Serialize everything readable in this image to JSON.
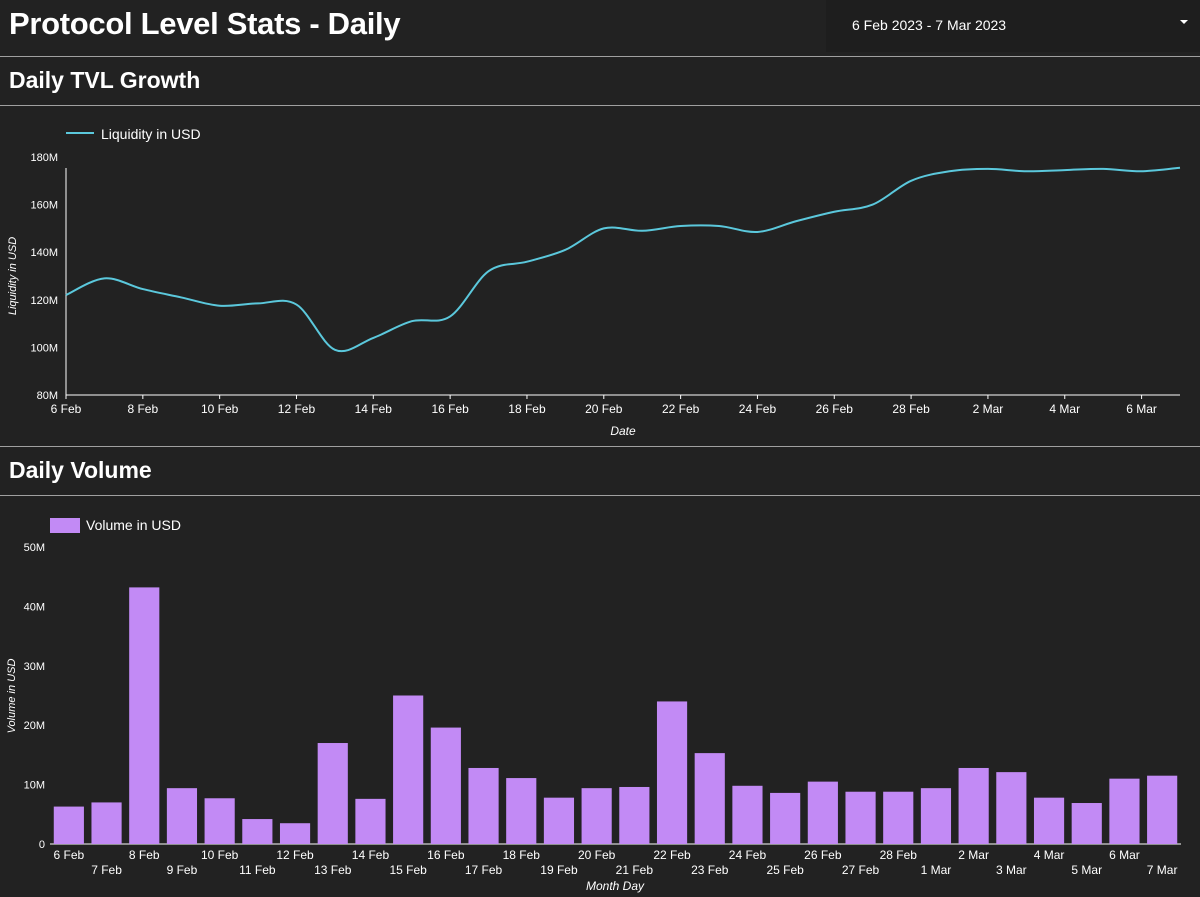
{
  "header": {
    "title": "Protocol Level Stats - Daily",
    "date_range": "6 Feb 2023 - 7 Mar 2023"
  },
  "colors": {
    "background": "#222222",
    "line": "#5bc8dc",
    "bar": "#c28af5",
    "axis": "#ffffff"
  },
  "sections": {
    "tvl_title": "Daily TVL Growth",
    "volume_title": "Daily Volume"
  },
  "chart_data": [
    {
      "type": "line",
      "title": "Daily TVL Growth",
      "xlabel": "Date",
      "ylabel": "Liquidity in USD",
      "legend": "top-left",
      "grid": false,
      "ylim": [
        80000000,
        180000000
      ],
      "yticks": [
        "80M",
        "100M",
        "120M",
        "140M",
        "160M",
        "180M"
      ],
      "xticks": [
        "6 Feb",
        "8 Feb",
        "10 Feb",
        "12 Feb",
        "14 Feb",
        "16 Feb",
        "18 Feb",
        "20 Feb",
        "22 Feb",
        "24 Feb",
        "26 Feb",
        "28 Feb",
        "2 Mar",
        "4 Mar",
        "6 Mar"
      ],
      "series": [
        {
          "name": "Liquidity in USD",
          "x": [
            "6 Feb",
            "7 Feb",
            "8 Feb",
            "9 Feb",
            "10 Feb",
            "11 Feb",
            "12 Feb",
            "13 Feb",
            "14 Feb",
            "15 Feb",
            "16 Feb",
            "17 Feb",
            "18 Feb",
            "19 Feb",
            "20 Feb",
            "21 Feb",
            "22 Feb",
            "23 Feb",
            "24 Feb",
            "25 Feb",
            "26 Feb",
            "27 Feb",
            "28 Feb",
            "1 Mar",
            "2 Mar",
            "3 Mar",
            "4 Mar",
            "5 Mar",
            "6 Mar",
            "7 Mar"
          ],
          "values": [
            122000000,
            129000000,
            124500000,
            121000000,
            117500000,
            118500000,
            118000000,
            99000000,
            104000000,
            111000000,
            113000000,
            132000000,
            136000000,
            141000000,
            150000000,
            149000000,
            151000000,
            151000000,
            148500000,
            153000000,
            157000000,
            160000000,
            170000000,
            174000000,
            175000000,
            174000000,
            174500000,
            175000000,
            174000000,
            175500000
          ]
        }
      ]
    },
    {
      "type": "bar",
      "title": "Daily Volume",
      "xlabel": "Month Day",
      "ylabel": "Volume in USD",
      "legend": "top-left",
      "grid": false,
      "ylim": [
        0,
        50000000
      ],
      "yticks": [
        "0",
        "10M",
        "20M",
        "30M",
        "40M",
        "50M"
      ],
      "categories": [
        "6 Feb",
        "7 Feb",
        "8 Feb",
        "9 Feb",
        "10 Feb",
        "11 Feb",
        "12 Feb",
        "13 Feb",
        "14 Feb",
        "15 Feb",
        "16 Feb",
        "17 Feb",
        "18 Feb",
        "19 Feb",
        "20 Feb",
        "21 Feb",
        "22 Feb",
        "23 Feb",
        "24 Feb",
        "25 Feb",
        "26 Feb",
        "27 Feb",
        "28 Feb",
        "1 Mar",
        "2 Mar",
        "3 Mar",
        "4 Mar",
        "5 Mar",
        "6 Mar",
        "7 Mar"
      ],
      "series": [
        {
          "name": "Volume in USD",
          "values": [
            6300000,
            7000000,
            43200000,
            9400000,
            7700000,
            4200000,
            3500000,
            17000000,
            7600000,
            25000000,
            19600000,
            12800000,
            11100000,
            7800000,
            9400000,
            9600000,
            24000000,
            15300000,
            9800000,
            8600000,
            10500000,
            8800000,
            8800000,
            9400000,
            12800000,
            12100000,
            7800000,
            6900000,
            11000000,
            11500000
          ]
        }
      ]
    }
  ]
}
